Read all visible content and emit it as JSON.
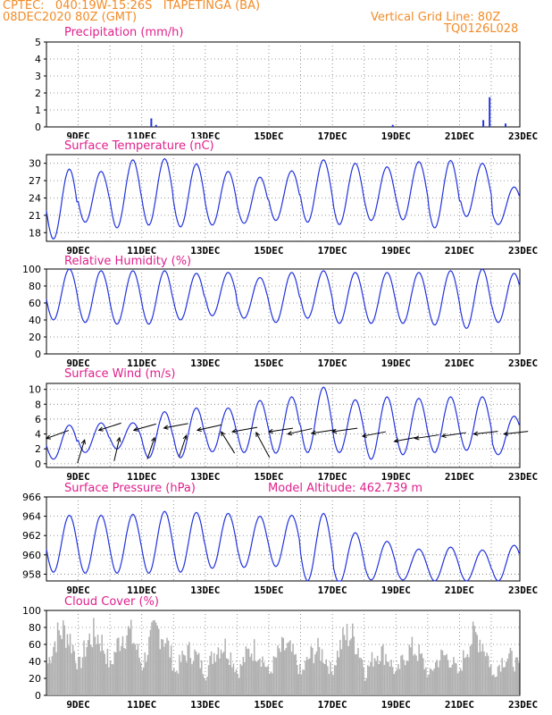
{
  "header": {
    "line1": "CPTEC:   040:19W-15:26S   ITAPETINGA (BA)",
    "line2": "08DEC2020 80Z (GMT)",
    "vertical_grid": "Vertical Grid Line: 80Z",
    "code": "TQ0126L028"
  },
  "colors": {
    "header": "#f28c28",
    "title": "#e0208c",
    "line": "#2233dd",
    "bar": "#b0b0b0",
    "arrow": "#000000"
  },
  "chart_data": [
    {
      "type": "bar",
      "title": "Precipitation (mm/h)",
      "ylim": [
        0,
        5
      ],
      "yticks": [
        0,
        1,
        2,
        3,
        4,
        5
      ],
      "xticks": [
        "9DEC",
        "11DEC",
        "13DEC",
        "15DEC",
        "17DEC",
        "19DEC",
        "21DEC",
        "23DEC"
      ],
      "x_days": [
        0.0,
        14.9
      ],
      "grid": true,
      "series": [
        {
          "x": [
            3.3,
            3.45,
            10.9,
            13.75,
            13.95,
            14.45
          ],
          "values": [
            0.5,
            0.12,
            0.12,
            0.4,
            1.75,
            0.2
          ]
        }
      ]
    },
    {
      "type": "line",
      "title": "Surface Temperature (nC)",
      "ylim": [
        16.5,
        31.5
      ],
      "yticks": [
        18,
        21,
        24,
        27,
        30
      ],
      "xticks": [
        "9DEC",
        "11DEC",
        "13DEC",
        "15DEC",
        "17DEC",
        "19DEC",
        "21DEC",
        "23DEC"
      ],
      "x_days": [
        0.0,
        14.9
      ],
      "grid": true,
      "daily": {
        "max": [
          29.0,
          28.6,
          30.6,
          30.8,
          29.9,
          28.6,
          27.6,
          28.7,
          30.6,
          30.0,
          29.4,
          30.3,
          30.5,
          30.0,
          25.9,
          28.1
        ],
        "min": [
          16.9,
          19.8,
          18.8,
          19.3,
          19.0,
          19.3,
          19.6,
          20.1,
          19.8,
          19.4,
          20.1,
          20.2,
          18.8,
          20.8,
          19.4,
          20.0
        ]
      }
    },
    {
      "type": "line",
      "title": "Relative Humidity (%)",
      "ylim": [
        0,
        100
      ],
      "yticks": [
        0,
        20,
        40,
        60,
        80,
        100
      ],
      "xticks": [
        "9DEC",
        "11DEC",
        "13DEC",
        "15DEC",
        "17DEC",
        "19DEC",
        "21DEC",
        "23DEC"
      ],
      "x_days": [
        0.0,
        14.9
      ],
      "grid": true,
      "daily": {
        "max": [
          100,
          98,
          98,
          98,
          95,
          96,
          90,
          96,
          98,
          96,
          96,
          96,
          98,
          100,
          95,
          90
        ],
        "min": [
          40,
          37,
          35,
          35,
          40,
          45,
          42,
          37,
          42,
          36,
          36,
          36,
          34,
          30,
          37,
          40
        ]
      }
    },
    {
      "type": "line",
      "title": "Surface Wind (m/s)",
      "ylim": [
        -0.5,
        10.8
      ],
      "yticks": [
        0,
        2,
        4,
        6,
        8,
        10
      ],
      "xticks": [
        "9DEC",
        "11DEC",
        "13DEC",
        "15DEC",
        "17DEC",
        "19DEC",
        "21DEC",
        "23DEC"
      ],
      "x_days": [
        0.0,
        14.9
      ],
      "grid": true,
      "daily": {
        "max": [
          5.2,
          5.5,
          5.5,
          7.0,
          7.5,
          7.5,
          8.5,
          9.0,
          10.3,
          8.6,
          9.0,
          8.8,
          9.0,
          9.0,
          6.4,
          8.5
        ],
        "min": [
          0.6,
          1.5,
          2.0,
          0.8,
          0.8,
          1.6,
          1.5,
          1.4,
          1.5,
          1.5,
          0.6,
          1.2,
          1.5,
          1.8,
          1.2,
          1.2
        ]
      },
      "arrows": [
        {
          "x": 0.0,
          "y": 3.4,
          "dx": 25,
          "dy": -9
        },
        {
          "x": 1.2,
          "y": 3.2,
          "dx": -8,
          "dy": 26
        },
        {
          "x": 1.65,
          "y": 4.5,
          "dx": 25,
          "dy": -8
        },
        {
          "x": 2.3,
          "y": 3.5,
          "dx": -6,
          "dy": 26
        },
        {
          "x": 2.75,
          "y": 4.5,
          "dx": 25,
          "dy": -7
        },
        {
          "x": 3.4,
          "y": 3.5,
          "dx": -8,
          "dy": 24
        },
        {
          "x": 3.7,
          "y": 4.8,
          "dx": 27,
          "dy": -5
        },
        {
          "x": 4.4,
          "y": 3.8,
          "dx": -8,
          "dy": 24
        },
        {
          "x": 4.75,
          "y": 4.5,
          "dx": 27,
          "dy": -6
        },
        {
          "x": 5.5,
          "y": 4.3,
          "dx": 15,
          "dy": 24
        },
        {
          "x": 5.85,
          "y": 4.3,
          "dx": 28,
          "dy": -5
        },
        {
          "x": 6.6,
          "y": 4.2,
          "dx": 15,
          "dy": 28
        },
        {
          "x": 7.0,
          "y": 4.3,
          "dx": 27,
          "dy": -4
        },
        {
          "x": 7.6,
          "y": 4.0,
          "dx": 27,
          "dy": -6
        },
        {
          "x": 8.35,
          "y": 4.1,
          "dx": 27,
          "dy": -4
        },
        {
          "x": 9.0,
          "y": 4.3,
          "dx": 28,
          "dy": -4
        },
        {
          "x": 9.95,
          "y": 3.7,
          "dx": 26,
          "dy": -5
        },
        {
          "x": 10.95,
          "y": 3.0,
          "dx": 27,
          "dy": -5
        },
        {
          "x": 11.6,
          "y": 3.4,
          "dx": 27,
          "dy": -4
        },
        {
          "x": 12.45,
          "y": 3.7,
          "dx": 27,
          "dy": -4
        },
        {
          "x": 13.45,
          "y": 4.0,
          "dx": 27,
          "dy": -3
        },
        {
          "x": 14.4,
          "y": 4.0,
          "dx": 27,
          "dy": -3
        }
      ]
    },
    {
      "type": "line",
      "title": "Surface Pressure (hPa)",
      "subtitle": "Model Altitude: 462.739  m",
      "ylim": [
        957.3,
        966
      ],
      "yticks": [
        958,
        960,
        962,
        964,
        966
      ],
      "xticks": [
        "9DEC",
        "11DEC",
        "13DEC",
        "15DEC",
        "17DEC",
        "19DEC",
        "21DEC",
        "23DEC"
      ],
      "x_days": [
        0.0,
        14.9
      ],
      "grid": true,
      "daily": {
        "max": [
          964.1,
          964.1,
          964.2,
          964.5,
          964.4,
          964.3,
          964.0,
          964.1,
          964.3,
          962.3,
          961.4,
          960.6,
          960.8,
          960.5,
          961.0,
          961.7
        ],
        "min": [
          958.2,
          958.1,
          958.1,
          958.1,
          958.2,
          958.6,
          958.7,
          958.8,
          957.3,
          957.1,
          957.4,
          957.4,
          957.3,
          957.3,
          957.3,
          957.3
        ]
      }
    },
    {
      "type": "bar",
      "title": "Cloud Cover (%)",
      "ylim": [
        0,
        100
      ],
      "yticks": [
        0,
        20,
        40,
        60,
        80,
        100
      ],
      "xticks": [
        "9DEC",
        "11DEC",
        "13DEC",
        "15DEC",
        "17DEC",
        "19DEC",
        "21DEC",
        "23DEC"
      ],
      "x_days": [
        0.0,
        14.9
      ],
      "grid": true,
      "daily_peak": [
        98,
        92,
        96,
        98,
        66,
        76,
        70,
        72,
        68,
        92,
        66,
        70,
        60,
        90,
        58,
        84
      ]
    }
  ]
}
